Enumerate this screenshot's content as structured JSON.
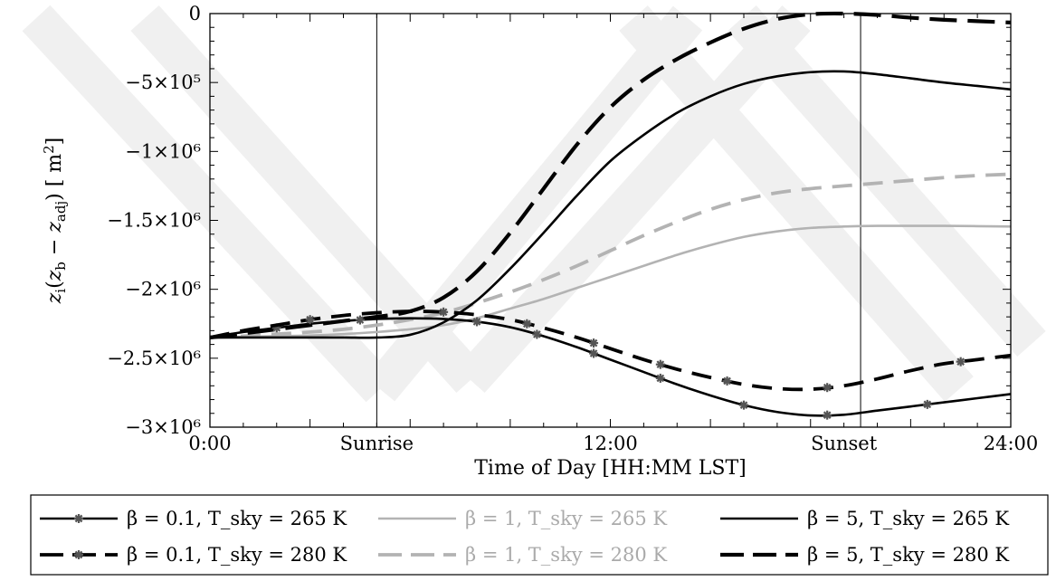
{
  "chart_data": {
    "type": "line",
    "xlabel": "Time of Day [HH:MM LST]",
    "ylabel": "z_i(z_b − z_adj) [ m²]",
    "xlim": [
      0,
      24
    ],
    "ylim": [
      -3000000,
      0
    ],
    "x_ticks": [
      {
        "x": 0,
        "label": "0:00"
      },
      {
        "x": 5,
        "label": "Sunrise"
      },
      {
        "x": 12,
        "label": "12:00"
      },
      {
        "x": 19,
        "label": "Sunset"
      },
      {
        "x": 24,
        "label": "24:00"
      }
    ],
    "y_ticks": [
      {
        "y": 0,
        "label": "0"
      },
      {
        "y": -500000,
        "label": "−5×10⁵"
      },
      {
        "y": -1000000,
        "label": "−1×10⁶"
      },
      {
        "y": -1500000,
        "label": "−1.5×10⁶"
      },
      {
        "y": -2000000,
        "label": "−2×10⁶"
      },
      {
        "y": -2500000,
        "label": "−2.5×10⁶"
      },
      {
        "y": -3000000,
        "label": "−3×10⁶"
      }
    ],
    "vertical_lines": [
      5,
      19.5
    ],
    "series": [
      {
        "name": "β = 0.1, T_sky = 265 K",
        "color": "#000000",
        "dash": "solid",
        "marker": "star",
        "x": [
          0,
          1,
          2,
          3,
          4,
          5,
          6,
          7,
          8,
          9,
          10,
          11,
          12,
          13,
          14,
          15,
          16,
          17,
          18,
          19,
          20,
          21,
          22,
          23,
          24
        ],
        "y": [
          -2350000,
          -2310000,
          -2280000,
          -2250000,
          -2230000,
          -2215000,
          -2210000,
          -2215000,
          -2235000,
          -2275000,
          -2340000,
          -2420000,
          -2510000,
          -2600000,
          -2690000,
          -2770000,
          -2840000,
          -2890000,
          -2915000,
          -2910000,
          -2880000,
          -2850000,
          -2820000,
          -2790000,
          -2760000
        ],
        "marker_x": [
          2,
          4.5,
          8,
          9.8,
          11.5,
          13.5,
          16,
          18.5,
          21.5
        ]
      },
      {
        "name": "β = 0.1, T_sky = 280 K",
        "color": "#000000",
        "dash": "dashed",
        "marker": "star",
        "x": [
          0,
          1,
          2,
          3,
          4,
          5,
          6,
          7,
          8,
          9,
          10,
          11,
          12,
          13,
          14,
          15,
          16,
          17,
          18,
          19,
          20,
          21,
          22,
          23,
          24
        ],
        "y": [
          -2350000,
          -2300000,
          -2260000,
          -2220000,
          -2190000,
          -2170000,
          -2160000,
          -2165000,
          -2185000,
          -2220000,
          -2280000,
          -2350000,
          -2430000,
          -2510000,
          -2580000,
          -2640000,
          -2690000,
          -2720000,
          -2725000,
          -2700000,
          -2650000,
          -2590000,
          -2540000,
          -2510000,
          -2480000
        ],
        "marker_x": [
          3,
          7,
          9.5,
          11.5,
          13.5,
          15.5,
          18.5,
          22.5
        ]
      },
      {
        "name": "β = 1, T_sky = 265 K",
        "color": "#b3b3b3",
        "dash": "solid",
        "marker": "none",
        "x": [
          0,
          1,
          2,
          3,
          4,
          5,
          6,
          7,
          8,
          9,
          10,
          11,
          12,
          13,
          14,
          15,
          16,
          17,
          18,
          19,
          20,
          21,
          22,
          23,
          24
        ],
        "y": [
          -2350000,
          -2345000,
          -2340000,
          -2335000,
          -2325000,
          -2310000,
          -2290000,
          -2260000,
          -2210000,
          -2140000,
          -2070000,
          -1990000,
          -1910000,
          -1830000,
          -1750000,
          -1680000,
          -1620000,
          -1580000,
          -1555000,
          -1545000,
          -1540000,
          -1540000,
          -1540000,
          -1542000,
          -1545000
        ]
      },
      {
        "name": "β = 1, T_sky = 280 K",
        "color": "#b3b3b3",
        "dash": "dashed",
        "marker": "none",
        "x": [
          0,
          1,
          2,
          3,
          4,
          5,
          6,
          7,
          8,
          9,
          10,
          11,
          12,
          13,
          14,
          15,
          16,
          17,
          18,
          19,
          20,
          21,
          22,
          23,
          24
        ],
        "y": [
          -2350000,
          -2340000,
          -2325000,
          -2310000,
          -2290000,
          -2260000,
          -2220000,
          -2170000,
          -2100000,
          -2020000,
          -1930000,
          -1830000,
          -1720000,
          -1610000,
          -1510000,
          -1420000,
          -1350000,
          -1300000,
          -1270000,
          -1250000,
          -1230000,
          -1210000,
          -1190000,
          -1175000,
          -1165000
        ]
      },
      {
        "name": "β = 5, T_sky = 265 K",
        "color": "#000000",
        "dash": "solid",
        "marker": "none",
        "x": [
          0,
          1,
          2,
          3,
          4,
          5,
          6,
          7,
          8,
          9,
          10,
          11,
          12,
          13,
          14,
          15,
          16,
          17,
          18,
          19,
          20,
          21,
          22,
          23,
          24
        ],
        "y": [
          -2350000,
          -2350000,
          -2350000,
          -2350000,
          -2350000,
          -2350000,
          -2330000,
          -2240000,
          -2080000,
          -1850000,
          -1590000,
          -1320000,
          -1070000,
          -880000,
          -720000,
          -600000,
          -510000,
          -455000,
          -425000,
          -420000,
          -440000,
          -470000,
          -500000,
          -525000,
          -550000
        ]
      },
      {
        "name": "β = 5, T_sky = 280 K",
        "color": "#000000",
        "dash": "longdash",
        "marker": "none",
        "x": [
          0,
          1,
          2,
          3,
          4,
          5,
          6,
          7,
          8,
          9,
          10,
          11,
          12,
          13,
          14,
          15,
          16,
          17,
          18,
          19,
          20,
          21,
          22,
          23,
          24
        ],
        "y": [
          -2350000,
          -2320000,
          -2290000,
          -2260000,
          -2230000,
          -2200000,
          -2160000,
          -2060000,
          -1870000,
          -1590000,
          -1270000,
          -950000,
          -680000,
          -480000,
          -330000,
          -210000,
          -110000,
          -40000,
          -5000,
          0,
          -10000,
          -30000,
          -45000,
          -55000,
          -65000
        ]
      }
    ],
    "legend": {
      "placement": "bottom",
      "items": [
        {
          "series": 0,
          "label": "β = 0.1, T_sky = 265 K"
        },
        {
          "series": 2,
          "label": "β = 1, T_sky = 265 K"
        },
        {
          "series": 4,
          "label": "β = 5, T_sky = 265 K"
        },
        {
          "series": 1,
          "label": "β = 0.1, T_sky = 280 K"
        },
        {
          "series": 3,
          "label": "β = 1, T_sky = 280 K"
        },
        {
          "series": 5,
          "label": "β = 5, T_sky = 280 K"
        }
      ]
    },
    "grid": false
  }
}
